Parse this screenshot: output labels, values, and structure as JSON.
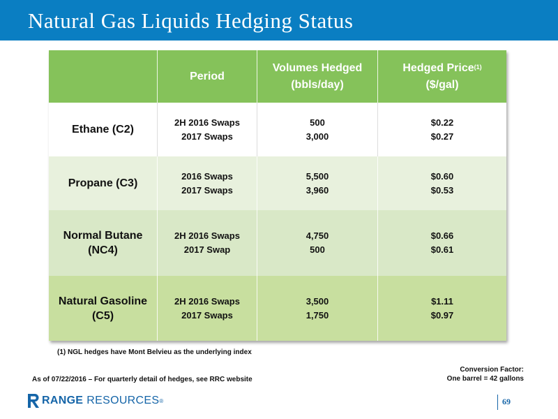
{
  "title": "Natural Gas Liquids Hedging Status",
  "colors": {
    "title_bar": "#0a7ec2",
    "header_row": "#85c25a",
    "row_ethane": "#ffffff",
    "row_propane": "#e8f1dd",
    "row_butane": "#d9e8c7",
    "row_gasoline": "#c8df9f",
    "logo": "#1565a8"
  },
  "table": {
    "headers": {
      "product": "",
      "period": "Period",
      "volumes_line1": "Volumes Hedged",
      "volumes_line2": "(bbls/day)",
      "price_line1": "Hedged Price",
      "price_sup": "(1)",
      "price_line2": "($/gal)"
    },
    "rows": [
      {
        "product_line1": "Ethane (C2)",
        "product_line2": "",
        "periods": [
          "2H 2016 Swaps",
          "2017 Swaps"
        ],
        "volumes": [
          "500",
          "3,000"
        ],
        "prices": [
          "$0.22",
          "$0.27"
        ]
      },
      {
        "product_line1": "Propane (C3)",
        "product_line2": "",
        "periods": [
          "2016 Swaps",
          "2017 Swaps"
        ],
        "volumes": [
          "5,500",
          "3,960"
        ],
        "prices": [
          "$0.60",
          "$0.53"
        ]
      },
      {
        "product_line1": "Normal Butane",
        "product_line2": "(NC4)",
        "periods": [
          "2H 2016 Swaps",
          "2017 Swap"
        ],
        "volumes": [
          "4,750",
          "500"
        ],
        "prices": [
          "$0.66",
          "$0.61"
        ]
      },
      {
        "product_line1": "Natural Gasoline",
        "product_line2": "(C5)",
        "periods": [
          "2H 2016 Swaps",
          "2017 Swaps"
        ],
        "volumes": [
          "3,500",
          "1,750"
        ],
        "prices": [
          "$1.11",
          "$0.97"
        ]
      }
    ]
  },
  "footnote": "(1) NGL hedges have Mont Belvieu as the underlying index",
  "as_of": "As of 07/22/2016 – For quarterly detail of hedges, see RRC website",
  "conversion": {
    "line1": "Conversion Factor:",
    "line2": "One barrel = 42 gallons"
  },
  "logo": {
    "word1": "RANGE",
    "word2": "RESOURCES",
    "reg": "®",
    "icon": "range-resources-r-icon"
  },
  "page_number": "69"
}
